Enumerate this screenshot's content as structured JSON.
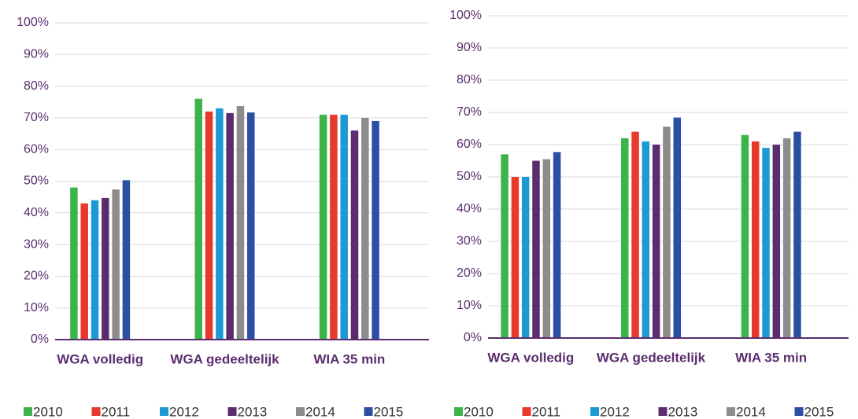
{
  "chart_data": [
    {
      "type": "bar",
      "categories": [
        "WGA volledig",
        "WGA gedeeltelijk",
        "WIA 35 min"
      ],
      "series": [
        {
          "name": "2010",
          "color": "#3cb44a",
          "values": [
            48,
            76,
            71
          ]
        },
        {
          "name": "2011",
          "color": "#e8392d",
          "values": [
            43,
            72,
            71
          ]
        },
        {
          "name": "2012",
          "color": "#1d9ad6",
          "values": [
            44,
            73,
            71
          ]
        },
        {
          "name": "2013",
          "color": "#5b2d6e",
          "values": [
            44.7,
            71.5,
            66
          ]
        },
        {
          "name": "2014",
          "color": "#8c8c8c",
          "values": [
            47.4,
            73.7,
            70
          ]
        },
        {
          "name": "2015",
          "color": "#2b4fa3",
          "values": [
            50.3,
            71.7,
            69
          ]
        }
      ],
      "ylim": [
        0,
        100
      ],
      "yticks": [
        {
          "value": 0,
          "label": "0%"
        },
        {
          "value": 10,
          "label": "10%"
        },
        {
          "value": 20,
          "label": "20%"
        },
        {
          "value": 30,
          "label": "30%"
        },
        {
          "value": 40,
          "label": "40%"
        },
        {
          "value": 50,
          "label": "50%"
        },
        {
          "value": 60,
          "label": "60%"
        },
        {
          "value": 70,
          "label": "70%"
        },
        {
          "value": 80,
          "label": "80%"
        },
        {
          "value": 90,
          "label": "90%"
        },
        {
          "value": 100,
          "label": "100%"
        }
      ],
      "grid": true,
      "legend": "bottom"
    },
    {
      "type": "bar",
      "categories": [
        "WGA volledig",
        "WGA gedeeltelijk",
        "WIA 35 min"
      ],
      "series": [
        {
          "name": "2010",
          "color": "#3cb44a",
          "values": [
            57,
            62,
            63
          ]
        },
        {
          "name": "2011",
          "color": "#e8392d",
          "values": [
            50,
            64,
            61
          ]
        },
        {
          "name": "2012",
          "color": "#1d9ad6",
          "values": [
            50,
            61,
            59
          ]
        },
        {
          "name": "2013",
          "color": "#5b2d6e",
          "values": [
            55,
            60,
            60
          ]
        },
        {
          "name": "2014",
          "color": "#8c8c8c",
          "values": [
            55.5,
            65.6,
            62
          ]
        },
        {
          "name": "2015",
          "color": "#2b4fa3",
          "values": [
            57.7,
            68.4,
            64
          ]
        }
      ],
      "ylim": [
        0,
        100
      ],
      "yticks": [
        {
          "value": 0,
          "label": "0%"
        },
        {
          "value": 10,
          "label": "10%"
        },
        {
          "value": 20,
          "label": "20%"
        },
        {
          "value": 30,
          "label": "30%"
        },
        {
          "value": 40,
          "label": "40%"
        },
        {
          "value": 50,
          "label": "50%"
        },
        {
          "value": 60,
          "label": "60%"
        },
        {
          "value": 70,
          "label": "70%"
        },
        {
          "value": 80,
          "label": "80%"
        },
        {
          "value": 90,
          "label": "90%"
        },
        {
          "value": 100,
          "label": "100%"
        }
      ],
      "grid": true,
      "legend": "bottom"
    }
  ]
}
